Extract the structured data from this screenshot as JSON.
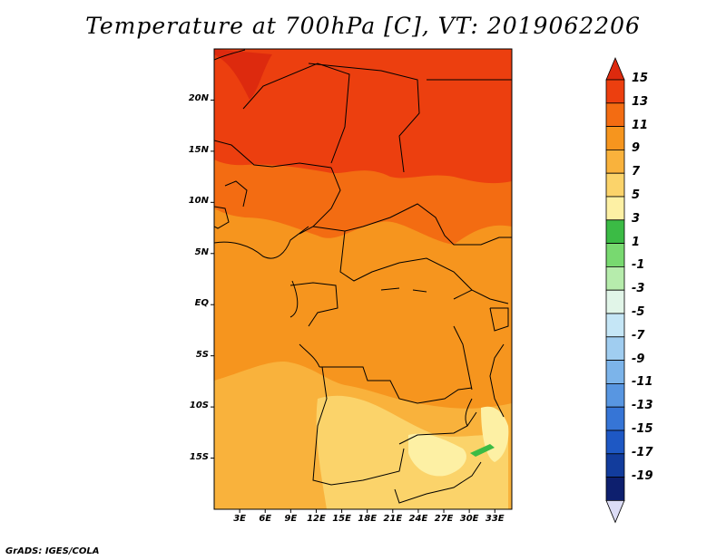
{
  "title": "Temperature at 700hPa [C], VT: 2019062206",
  "credit": "GrADS: IGES/COLA",
  "map": {
    "projection": "lat-lon",
    "lat_labels": [
      "20N",
      "15N",
      "10N",
      "5N",
      "EQ",
      "5S",
      "10S",
      "15S"
    ],
    "lat_values": [
      20,
      15,
      10,
      5,
      0,
      -5,
      -10,
      -15
    ],
    "lon_labels": [
      "3E",
      "6E",
      "9E",
      "12E",
      "15E",
      "18E",
      "21E",
      "24E",
      "27E",
      "30E",
      "33E"
    ],
    "lon_values": [
      3,
      6,
      9,
      12,
      15,
      18,
      21,
      24,
      27,
      30,
      33
    ],
    "lat_range": [
      -20,
      25
    ],
    "lon_range": [
      0,
      35
    ]
  },
  "colorbar": {
    "labels": [
      "15",
      "13",
      "11",
      "9",
      "7",
      "5",
      "3",
      "1",
      "-1",
      "-3",
      "-5",
      "-7",
      "-9",
      "-11",
      "-13",
      "-15",
      "-17",
      "-19"
    ],
    "colors": [
      "#dd2a0e",
      "#ec3f0f",
      "#f36c12",
      "#f6951e",
      "#f9b23c",
      "#fbd36a",
      "#fdf0a4",
      "#3bbb45",
      "#78d970",
      "#b6ecac",
      "#e1f5e8",
      "#c5e6f6",
      "#a0cdf0",
      "#7cb4ea",
      "#5896e1",
      "#3675d6",
      "#1e58c4",
      "#123c9c",
      "#0d1f6e",
      "#dcdcf5"
    ]
  },
  "fields": {
    "colors": {
      "hot": "#e73a0c",
      "warm": "#f36212",
      "mid": "#f6901b",
      "mild": "#f9b23c",
      "cool": "#fbd36a",
      "green": "#3bbb45"
    }
  }
}
